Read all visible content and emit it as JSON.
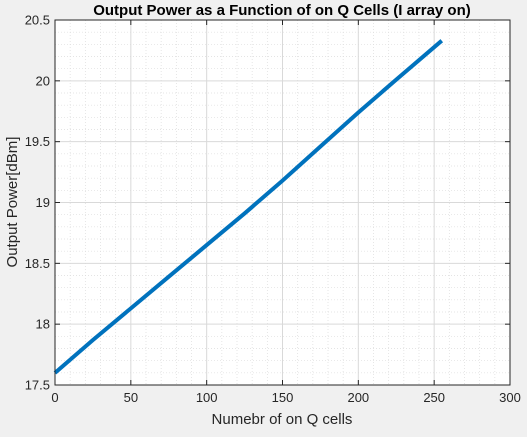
{
  "chart_data": {
    "type": "line",
    "title": "Output Power as a Function of on Q Cells (I array on)",
    "xlabel": "Numebr of on Q cells",
    "ylabel": "Output Power[dBm]",
    "xlim": [
      0,
      300
    ],
    "ylim": [
      17.5,
      20.5
    ],
    "xticks": [
      0,
      50,
      100,
      150,
      200,
      250,
      300
    ],
    "yticks": [
      17.5,
      18,
      18.5,
      19,
      19.5,
      20,
      20.5
    ],
    "xtick_labels": [
      "0",
      "50",
      "100",
      "150",
      "200",
      "250",
      "300"
    ],
    "ytick_labels": [
      "17.5",
      "18",
      "18.5",
      "19",
      "19.5",
      "20",
      "20.5"
    ],
    "grid": true,
    "minor_grid": true,
    "series": [
      {
        "color": "#0072bd",
        "x": [
          0,
          25,
          50,
          75,
          100,
          125,
          150,
          175,
          200,
          225,
          255
        ],
        "y": [
          17.6,
          17.87,
          18.13,
          18.39,
          18.65,
          18.91,
          19.18,
          19.46,
          19.74,
          20.01,
          20.33
        ]
      }
    ]
  }
}
